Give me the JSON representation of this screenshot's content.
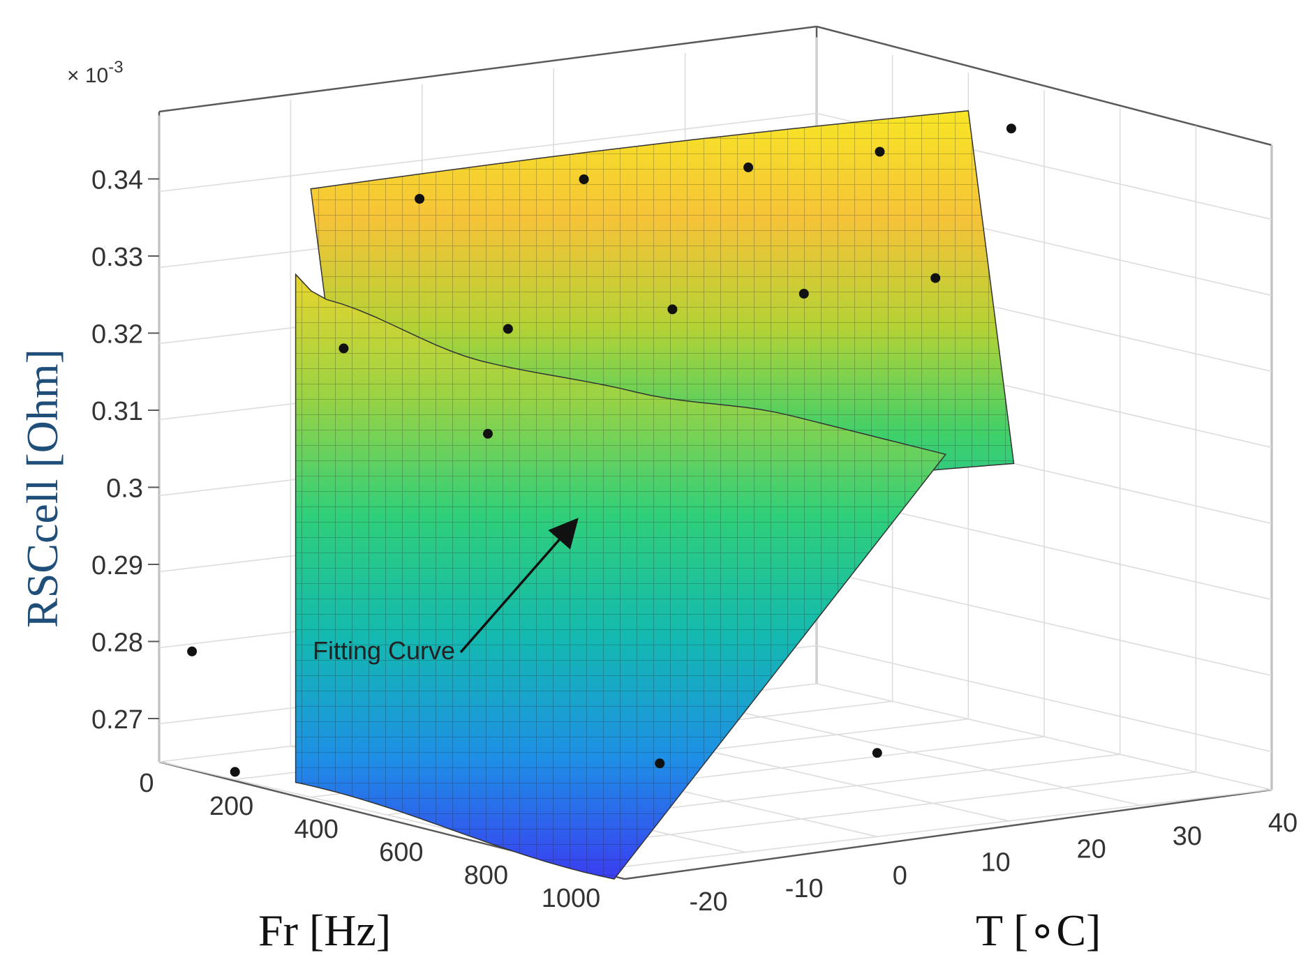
{
  "chart_data": {
    "type": "surface3d",
    "title": "",
    "zlabel": "RSCcell [Ohm]",
    "xlabel": "Fr [Hz]",
    "ylabel": "T [°C]",
    "zlabel_display": "RSCcell [Ohm]",
    "ylabel_display": "T [∘C]",
    "z_multiplier": "× 10",
    "z_multiplier_exp": "-3",
    "annotation": "Fitting Curve",
    "xlim": [
      0,
      1000
    ],
    "ylim": [
      -20,
      40
    ],
    "zlim": [
      0.265,
      0.35
    ],
    "x_ticks": [
      "0",
      "200",
      "400",
      "600",
      "800",
      "1000"
    ],
    "y_ticks": [
      "-20",
      "-10",
      "0",
      "10",
      "20",
      "30",
      "40"
    ],
    "z_ticks": [
      "0.27",
      "0.28",
      "0.29",
      "0.3",
      "0.31",
      "0.32",
      "0.33",
      "0.34"
    ],
    "grid": true,
    "colormap": [
      "#3a3df0",
      "#1f8ee8",
      "#17c2a8",
      "#3fd06a",
      "#b4d235",
      "#f6c338",
      "#f7e625"
    ],
    "surface_profile_T": [
      -20,
      -10,
      0,
      10,
      20,
      30,
      40
    ],
    "surface_profile_Z": [
      0.345,
      0.325,
      0.303,
      0.3,
      0.301,
      0.303,
      0.303
    ],
    "measured_points": [
      {
        "Fr": 50,
        "T": 10,
        "z": 0.3455
      },
      {
        "Fr": 250,
        "T": 10,
        "z": 0.3445
      },
      {
        "Fr": 450,
        "T": 10,
        "z": 0.3445
      },
      {
        "Fr": 700,
        "T": 10,
        "z": 0.3455
      },
      {
        "Fr": 950,
        "T": 10,
        "z": 0.3455
      },
      {
        "Fr": 50,
        "T": 0,
        "z": 0.3235
      },
      {
        "Fr": 250,
        "T": 0,
        "z": 0.3235
      },
      {
        "Fr": 450,
        "T": 0,
        "z": 0.3235
      },
      {
        "Fr": 700,
        "T": 0,
        "z": 0.3235
      },
      {
        "Fr": 950,
        "T": 0,
        "z": 0.3235
      },
      {
        "Fr": 500,
        "T": -20,
        "z": 0.303
      },
      {
        "Fr": 950,
        "T": -20,
        "z": 0.279
      },
      {
        "Fr": 1000,
        "T": -10,
        "z": 0.266
      },
      {
        "Fr": 700,
        "T": 20,
        "z": 0.271
      },
      {
        "Fr": 600,
        "T": 40,
        "z": 0.276
      }
    ]
  }
}
